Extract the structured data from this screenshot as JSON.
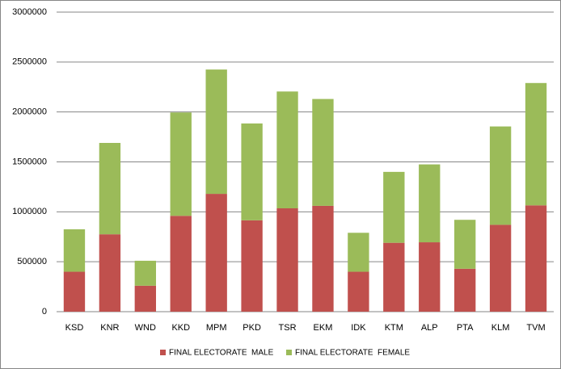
{
  "chart_data": {
    "type": "stacked_bar",
    "categories": [
      "KSD",
      "KNR",
      "WND",
      "KKD",
      "MPM",
      "PKD",
      "TSR",
      "EKM",
      "IDK",
      "KTM",
      "ALP",
      "PTA",
      "KLM",
      "TVM"
    ],
    "series": [
      {
        "name": "FINAL ELECTORATE  MALE",
        "color": "#c0504d",
        "values": [
          400000,
          775000,
          260000,
          960000,
          1180000,
          915000,
          1035000,
          1060000,
          400000,
          690000,
          695000,
          430000,
          870000,
          1065000
        ]
      },
      {
        "name": "FINAL ELECTORATE  FEMALE",
        "color": "#9bbb59",
        "values": [
          425000,
          915000,
          250000,
          1035000,
          1245000,
          970000,
          1170000,
          1070000,
          390000,
          710000,
          780000,
          490000,
          985000,
          1225000
        ]
      }
    ],
    "ylim": [
      0,
      3000000
    ],
    "yticks": [
      0,
      500000,
      1000000,
      1500000,
      2000000,
      2500000,
      3000000
    ],
    "grid": true,
    "legend": "bottom"
  }
}
